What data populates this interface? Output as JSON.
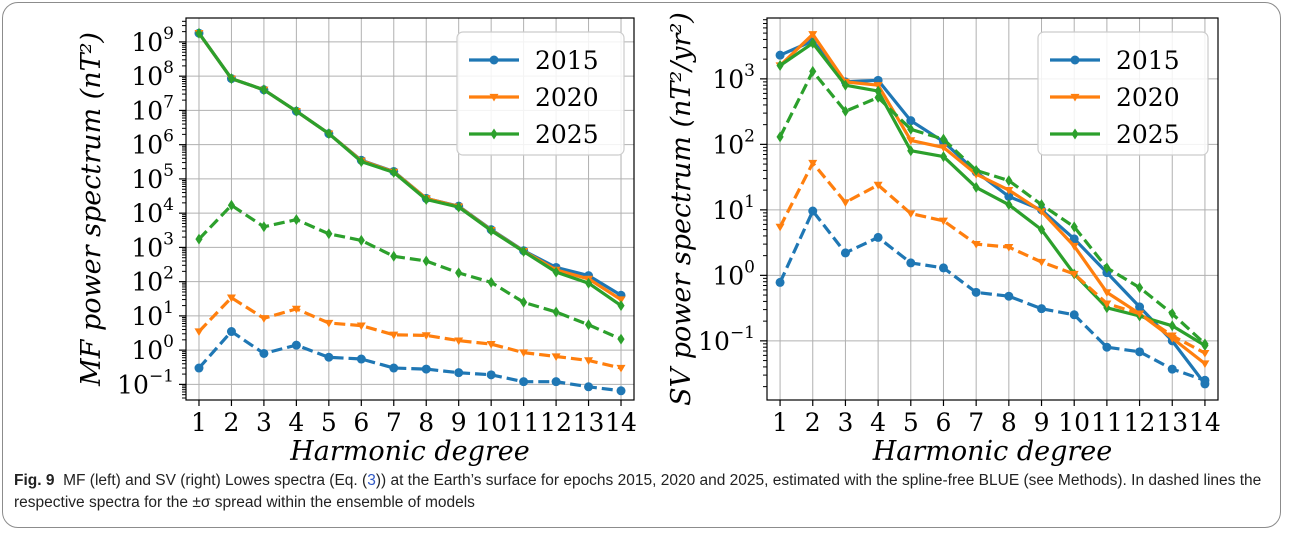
{
  "caption": {
    "label": "Fig. 9",
    "before_ref": "MF (left) and SV (right) Lowes spectra (Eq. (",
    "eq_ref": "3",
    "after_ref": ")) at the Earth’s surface for epochs 2015, 2020 and 2025, estimated with the spline-free BLUE (see Methods). In dashed lines the respective spectra for the ±σ spread within the ensemble of models"
  },
  "chart_data": [
    {
      "type": "line",
      "panel": "left",
      "xlabel": "Harmonic degree",
      "ylabel": "MF power spectrum (nT²)",
      "yscale": "log",
      "ylim": [
        0.035,
        5000000000
      ],
      "xlim": [
        0.6,
        14.4
      ],
      "x": [
        1,
        2,
        3,
        4,
        5,
        6,
        7,
        8,
        9,
        10,
        11,
        12,
        13,
        14
      ],
      "x_tick_labels": [
        "1",
        "2",
        "3",
        "4",
        "5",
        "6",
        "7",
        "8",
        "9",
        "10",
        "11",
        "12",
        "13",
        "14"
      ],
      "y_ticks": [
        0.1,
        1,
        10,
        100,
        1000,
        10000,
        100000,
        1000000,
        10000000,
        100000000,
        1000000000
      ],
      "y_tick_labels": [
        {
          "base": "10",
          "exp": "−1"
        },
        {
          "base": "10",
          "exp": "0"
        },
        {
          "base": "10",
          "exp": "1"
        },
        {
          "base": "10",
          "exp": "2"
        },
        {
          "base": "10",
          "exp": "3"
        },
        {
          "base": "10",
          "exp": "4"
        },
        {
          "base": "10",
          "exp": "5"
        },
        {
          "base": "10",
          "exp": "6"
        },
        {
          "base": "10",
          "exp": "7"
        },
        {
          "base": "10",
          "exp": "8"
        },
        {
          "base": "10",
          "exp": "9"
        }
      ],
      "grid": true,
      "legend_position": "top-right",
      "series": [
        {
          "name": "2015",
          "color": "#1f77b4",
          "marker": "circle",
          "style": "solid",
          "values": [
            1800000000,
            85000000,
            40000000,
            9500000,
            2100000,
            350000,
            165000,
            27000,
            16000,
            3300,
            800,
            260,
            150,
            40
          ]
        },
        {
          "name": "2020",
          "color": "#ff7f0e",
          "marker": "triangle-down",
          "style": "solid",
          "values": [
            1800000000,
            85000000,
            40000000,
            9500000,
            2100000,
            340000,
            160000,
            27000,
            15500,
            3200,
            780,
            220,
            120,
            30
          ]
        },
        {
          "name": "2025",
          "color": "#2ca02c",
          "marker": "diamond",
          "style": "solid",
          "values": [
            1800000000,
            85000000,
            40000000,
            9500000,
            2100000,
            320000,
            155000,
            25000,
            15000,
            3100,
            760,
            190,
            90,
            20
          ]
        },
        {
          "color": "#1f77b4",
          "marker": "circle",
          "style": "dashed",
          "values": [
            0.3,
            3.5,
            0.8,
            1.4,
            0.62,
            0.55,
            0.3,
            0.28,
            0.22,
            0.19,
            0.12,
            0.12,
            0.085,
            0.065
          ]
        },
        {
          "color": "#ff7f0e",
          "marker": "triangle-down",
          "style": "dashed",
          "values": [
            3.5,
            34,
            8.5,
            16,
            6.2,
            5.2,
            2.8,
            2.7,
            1.9,
            1.5,
            0.85,
            0.65,
            0.5,
            0.3
          ]
        },
        {
          "color": "#2ca02c",
          "marker": "diamond",
          "style": "dashed",
          "values": [
            1750,
            17000,
            4000,
            6500,
            2500,
            1600,
            550,
            400,
            180,
            95,
            25,
            13,
            5.5,
            2.1
          ]
        }
      ]
    },
    {
      "type": "line",
      "panel": "right",
      "xlabel": "Harmonic degree",
      "ylabel": "SV power spectrum (nT²/yr²)",
      "yscale": "log",
      "ylim": [
        0.0125,
        8500
      ],
      "xlim": [
        0.6,
        14.4
      ],
      "x": [
        1,
        2,
        3,
        4,
        5,
        6,
        7,
        8,
        9,
        10,
        11,
        12,
        13,
        14
      ],
      "x_tick_labels": [
        "1",
        "2",
        "3",
        "4",
        "5",
        "6",
        "7",
        "8",
        "9",
        "10",
        "11",
        "12",
        "13",
        "14"
      ],
      "y_ticks": [
        0.1,
        1,
        10,
        100,
        1000
      ],
      "y_tick_labels": [
        {
          "base": "10",
          "exp": "−1"
        },
        {
          "base": "10",
          "exp": "0"
        },
        {
          "base": "10",
          "exp": "1"
        },
        {
          "base": "10",
          "exp": "2"
        },
        {
          "base": "10",
          "exp": "3"
        }
      ],
      "grid": true,
      "legend_position": "top-right",
      "series": [
        {
          "name": "2015",
          "color": "#1f77b4",
          "marker": "circle",
          "style": "solid",
          "values": [
            2300,
            3800,
            900,
            950,
            230,
            110,
            38,
            16,
            10,
            3.6,
            1.1,
            0.33,
            0.1,
            0.022
          ]
        },
        {
          "name": "2020",
          "color": "#ff7f0e",
          "marker": "triangle-down",
          "style": "solid",
          "values": [
            1600,
            4800,
            900,
            800,
            115,
            90,
            35,
            20,
            9.5,
            2.8,
            0.55,
            0.26,
            0.11,
            0.045
          ]
        },
        {
          "name": "2025",
          "color": "#2ca02c",
          "marker": "diamond",
          "style": "solid",
          "values": [
            1600,
            3500,
            800,
            650,
            80,
            65,
            22,
            12,
            5,
            1.05,
            0.32,
            0.24,
            0.17,
            0.085
          ]
        },
        {
          "color": "#1f77b4",
          "marker": "circle",
          "style": "dashed",
          "values": [
            0.78,
            9.6,
            2.2,
            3.8,
            1.55,
            1.3,
            0.55,
            0.48,
            0.31,
            0.25,
            0.08,
            0.068,
            0.037,
            0.025
          ]
        },
        {
          "color": "#ff7f0e",
          "marker": "triangle-down",
          "style": "dashed",
          "values": [
            5.5,
            52,
            13,
            24,
            8.8,
            6.8,
            3,
            2.7,
            1.6,
            1.05,
            0.37,
            0.26,
            0.12,
            0.065
          ]
        },
        {
          "color": "#2ca02c",
          "marker": "diamond",
          "style": "dashed",
          "values": [
            130,
            1300,
            320,
            520,
            170,
            120,
            40,
            28,
            12,
            5.5,
            1.3,
            0.65,
            0.26,
            0.09
          ]
        }
      ]
    }
  ]
}
